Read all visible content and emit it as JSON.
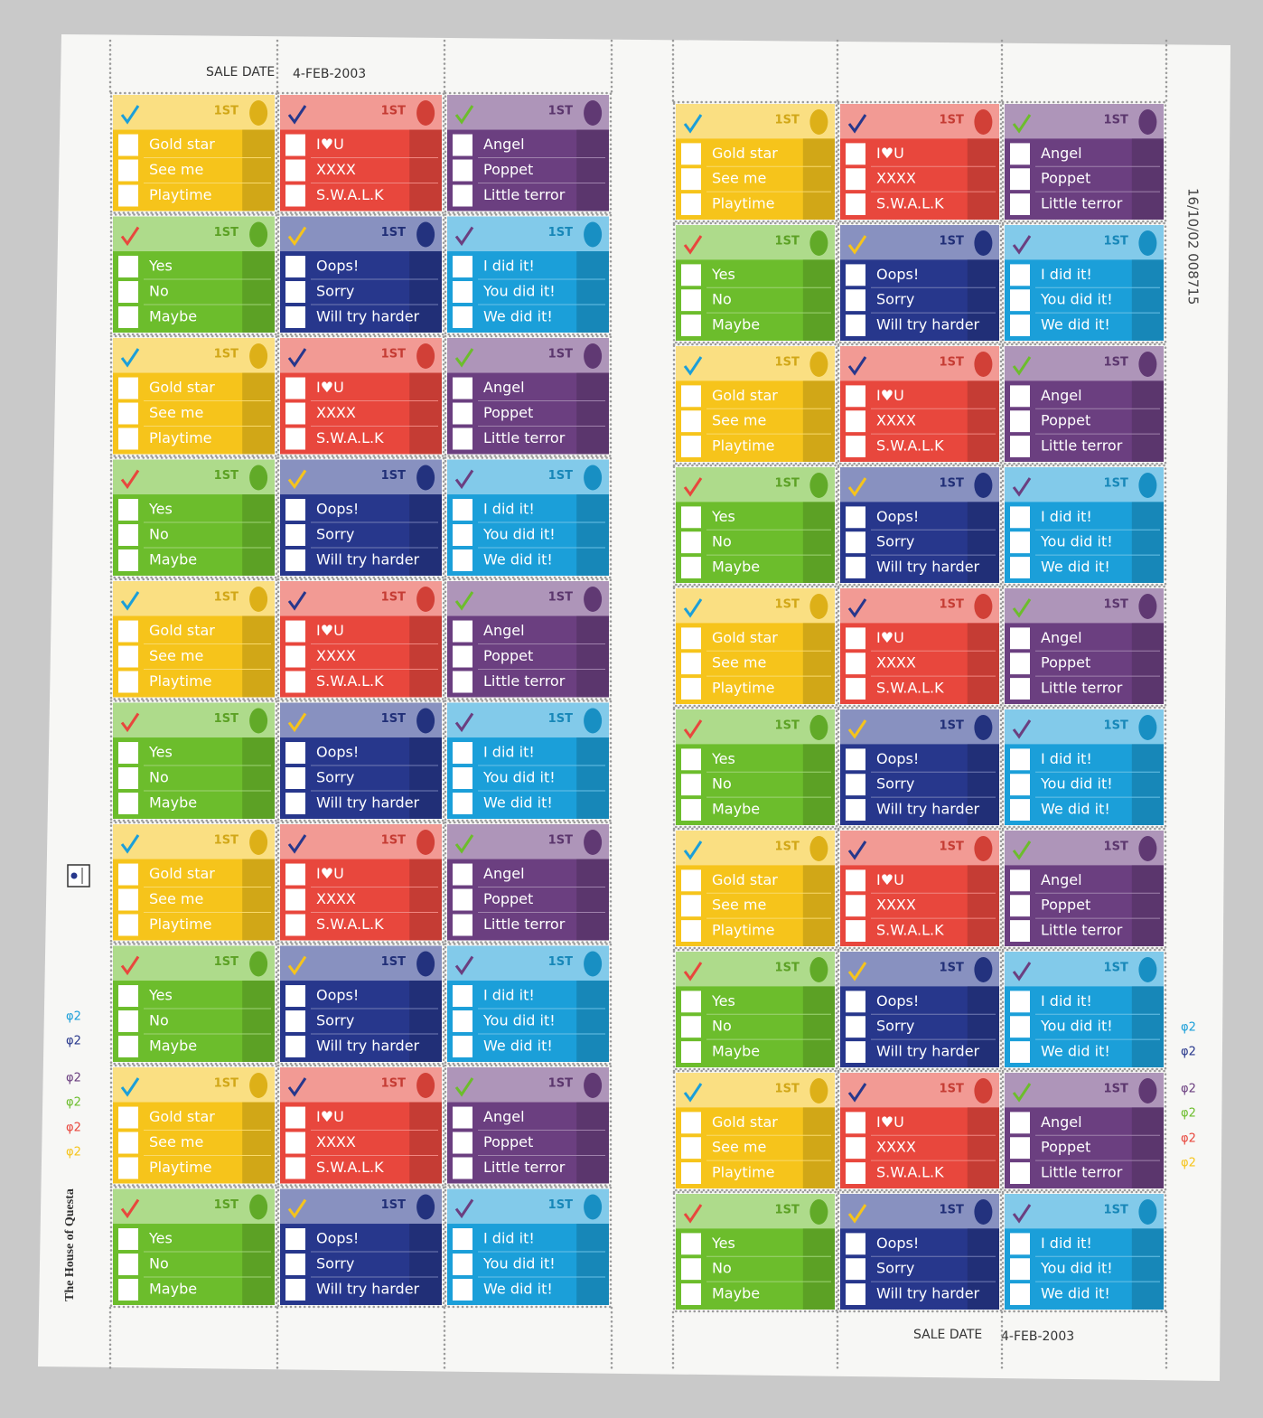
{
  "margin": {
    "sale_date_label": "SALE DATE",
    "sale_date": "4-FEB-2003",
    "sheet_code": "16/10/02 008715",
    "printer": "The House of Questa",
    "cylinder": "φ2"
  },
  "stamps": {
    "value": "1ST",
    "designs": [
      {
        "color": "#f6c41b",
        "lines": [
          "Gold star",
          "See me",
          "Playtime"
        ]
      },
      {
        "color": "#e8473d",
        "lines": [
          "I♥U",
          "XXXX",
          "S.W.A.L.K"
        ]
      },
      {
        "color": "#6b3f80",
        "lines": [
          "Angel",
          "Poppet",
          "Little terror"
        ]
      },
      {
        "color": "#6cbd2c",
        "lines": [
          "Yes",
          "No",
          "Maybe"
        ]
      },
      {
        "color": "#27378c",
        "lines": [
          "Oops!",
          "Sorry",
          "Will try harder"
        ]
      },
      {
        "color": "#1b9fd9",
        "lines": [
          "I did it!",
          "You did it!",
          "We did it!"
        ]
      }
    ]
  }
}
